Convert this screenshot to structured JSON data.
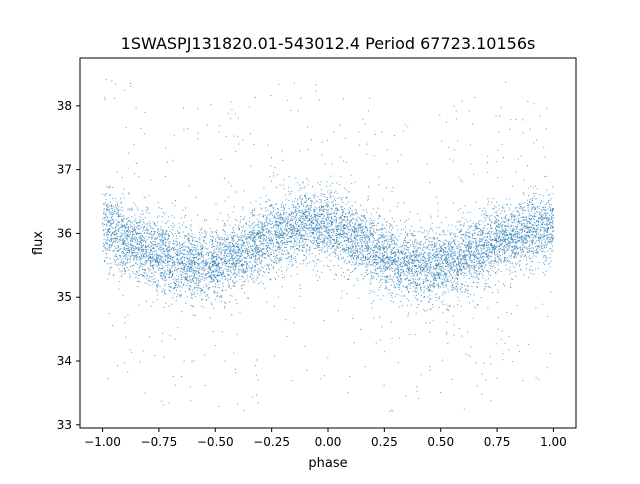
{
  "chart_data": {
    "type": "scatter",
    "title": "1SWASPJ131820.01-543012.4 Period 67723.10156s",
    "xlabel": "phase",
    "ylabel": "flux",
    "xlim": [
      -1.1,
      1.1
    ],
    "ylim": [
      32.95,
      38.75
    ],
    "xticks": [
      -1.0,
      -0.75,
      -0.5,
      -0.25,
      0.0,
      0.25,
      0.5,
      0.75,
      1.0
    ],
    "xtick_labels": [
      "−1.00",
      "−0.75",
      "−0.50",
      "−0.25",
      "0.00",
      "0.25",
      "0.50",
      "0.75",
      "1.00"
    ],
    "yticks": [
      33,
      34,
      35,
      36,
      37,
      38
    ],
    "ytick_labels": [
      "33",
      "34",
      "35",
      "36",
      "37",
      "38"
    ],
    "grid": false,
    "legend": "none",
    "point_color": "#1f77b4",
    "series": [
      {
        "x": [
          -1.0,
          -0.9,
          -0.8,
          -0.7,
          -0.6,
          -0.5,
          -0.4,
          -0.3,
          -0.2,
          -0.1,
          0.0,
          0.1,
          0.2,
          0.3,
          0.4,
          0.5,
          0.6,
          0.7,
          0.8,
          0.9,
          1.0
        ],
        "y_center": [
          36.1,
          35.95,
          35.75,
          35.6,
          35.55,
          35.55,
          35.65,
          35.85,
          36.05,
          36.15,
          36.1,
          35.95,
          35.75,
          35.6,
          35.5,
          35.5,
          35.6,
          35.8,
          35.95,
          36.05,
          36.1
        ],
        "y_spread": 0.28,
        "n_points": 9000
      }
    ]
  }
}
